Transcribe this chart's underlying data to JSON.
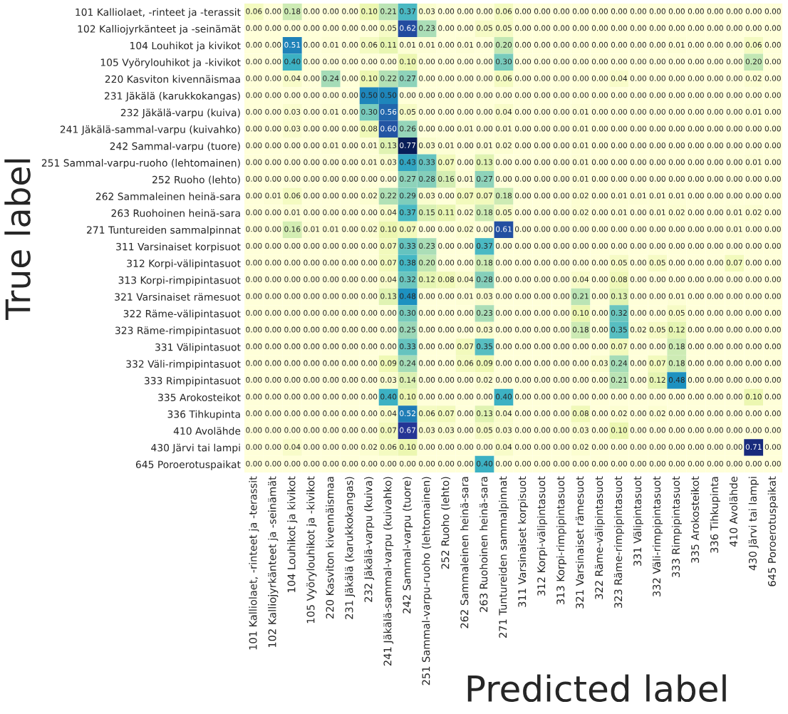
{
  "chart_data": {
    "type": "heatmap",
    "xlabel": "Predicted label",
    "ylabel": "True label",
    "cell_labels": [
      [
        "0.06",
        "0.00",
        "0.18",
        "0.00",
        "0.00",
        "0.00",
        "0.10",
        "0.21",
        "0.37",
        "0.03",
        "0.00",
        "0.00",
        "0.00",
        "0.06",
        "0.00",
        "0.00",
        "0.00",
        "0.00",
        "0.00",
        "0.00",
        "0.00",
        "0.00",
        "0.00",
        "0.00",
        "0.00",
        "0.00",
        "0.00",
        "0.00"
      ],
      [
        "0.00",
        "0.00",
        "0.00",
        "0.00",
        "0.00",
        "0.00",
        "0.00",
        "0.05",
        "0.62",
        "0.23",
        "0.00",
        "0.00",
        "0.05",
        "0.05",
        "0.00",
        "0.00",
        "0.00",
        "0.00",
        "0.00",
        "0.00",
        "0.00",
        "0.00",
        "0.00",
        "0.00",
        "0.00",
        "0.00",
        "0.00",
        "0.00"
      ],
      [
        "0.00",
        "0.00",
        "0.51",
        "0.00",
        "0.01",
        "0.00",
        "0.06",
        "0.11",
        "0.01",
        "0.01",
        "0.00",
        "0.01",
        "0.00",
        "0.20",
        "0.00",
        "0.00",
        "0.00",
        "0.00",
        "0.00",
        "0.00",
        "0.00",
        "0.00",
        "0.01",
        "0.00",
        "0.00",
        "0.00",
        "0.06",
        "0.00"
      ],
      [
        "0.00",
        "0.00",
        "0.40",
        "0.00",
        "0.00",
        "0.00",
        "0.00",
        "0.00",
        "0.10",
        "0.00",
        "0.00",
        "0.00",
        "0.00",
        "0.30",
        "0.00",
        "0.00",
        "0.00",
        "0.00",
        "0.00",
        "0.00",
        "0.00",
        "0.00",
        "0.00",
        "0.00",
        "0.00",
        "0.00",
        "0.20",
        "0.00"
      ],
      [
        "0.00",
        "0.00",
        "0.04",
        "0.00",
        "0.24",
        "0.00",
        "0.10",
        "0.22",
        "0.27",
        "0.00",
        "0.00",
        "0.00",
        "0.00",
        "0.06",
        "0.00",
        "0.00",
        "0.00",
        "0.00",
        "0.00",
        "0.04",
        "0.00",
        "0.00",
        "0.00",
        "0.00",
        "0.00",
        "0.00",
        "0.02",
        "0.00"
      ],
      [
        "0.00",
        "0.00",
        "0.00",
        "0.00",
        "0.00",
        "0.00",
        "0.50",
        "0.50",
        "0.00",
        "0.00",
        "0.00",
        "0.00",
        "0.00",
        "0.00",
        "0.00",
        "0.00",
        "0.00",
        "0.00",
        "0.00",
        "0.00",
        "0.00",
        "0.00",
        "0.00",
        "0.00",
        "0.00",
        "0.00",
        "0.00",
        "0.00"
      ],
      [
        "0.00",
        "0.00",
        "0.03",
        "0.00",
        "0.01",
        "0.00",
        "0.30",
        "0.56",
        "0.05",
        "0.00",
        "0.00",
        "0.00",
        "0.00",
        "0.04",
        "0.00",
        "0.00",
        "0.00",
        "0.01",
        "0.00",
        "0.00",
        "0.00",
        "0.00",
        "0.00",
        "0.00",
        "0.00",
        "0.00",
        "0.01",
        "0.00"
      ],
      [
        "0.00",
        "0.00",
        "0.03",
        "0.00",
        "0.00",
        "0.00",
        "0.08",
        "0.60",
        "0.26",
        "0.00",
        "0.00",
        "0.01",
        "0.00",
        "0.01",
        "0.00",
        "0.00",
        "0.00",
        "0.01",
        "0.00",
        "0.00",
        "0.00",
        "0.00",
        "0.00",
        "0.00",
        "0.00",
        "0.00",
        "0.00",
        "0.00"
      ],
      [
        "0.00",
        "0.00",
        "0.00",
        "0.00",
        "0.01",
        "0.00",
        "0.01",
        "0.13",
        "0.77",
        "0.03",
        "0.01",
        "0.00",
        "0.01",
        "0.02",
        "0.00",
        "0.00",
        "0.00",
        "0.01",
        "0.00",
        "0.00",
        "0.00",
        "0.00",
        "0.00",
        "0.00",
        "0.00",
        "0.00",
        "0.00",
        "0.00"
      ],
      [
        "0.00",
        "0.00",
        "0.00",
        "0.00",
        "0.00",
        "0.00",
        "0.01",
        "0.03",
        "0.43",
        "0.33",
        "0.07",
        "0.00",
        "0.13",
        "0.00",
        "0.00",
        "0.00",
        "0.00",
        "0.01",
        "0.00",
        "0.00",
        "0.00",
        "0.00",
        "0.00",
        "0.00",
        "0.00",
        "0.00",
        "0.01",
        "0.00"
      ],
      [
        "0.00",
        "0.00",
        "0.00",
        "0.00",
        "0.00",
        "0.00",
        "0.00",
        "0.00",
        "0.27",
        "0.28",
        "0.16",
        "0.01",
        "0.27",
        "0.00",
        "0.00",
        "0.00",
        "0.00",
        "0.01",
        "0.00",
        "0.00",
        "0.00",
        "0.00",
        "0.00",
        "0.00",
        "0.00",
        "0.00",
        "0.00",
        "0.00"
      ],
      [
        "0.00",
        "0.01",
        "0.06",
        "0.00",
        "0.00",
        "0.00",
        "0.02",
        "0.22",
        "0.29",
        "0.03",
        "0.00",
        "0.07",
        "0.07",
        "0.18",
        "0.00",
        "0.00",
        "0.00",
        "0.02",
        "0.00",
        "0.01",
        "0.01",
        "0.01",
        "0.01",
        "0.00",
        "0.00",
        "0.00",
        "0.00",
        "0.00"
      ],
      [
        "0.00",
        "0.00",
        "0.01",
        "0.00",
        "0.00",
        "0.00",
        "0.00",
        "0.04",
        "0.37",
        "0.15",
        "0.11",
        "0.02",
        "0.18",
        "0.05",
        "0.00",
        "0.00",
        "0.00",
        "0.02",
        "0.00",
        "0.01",
        "0.00",
        "0.01",
        "0.02",
        "0.00",
        "0.00",
        "0.01",
        "0.02",
        "0.00"
      ],
      [
        "0.00",
        "0.00",
        "0.16",
        "0.01",
        "0.01",
        "0.00",
        "0.02",
        "0.10",
        "0.07",
        "0.00",
        "0.00",
        "0.02",
        "0.00",
        "0.61",
        "0.00",
        "0.00",
        "0.00",
        "0.00",
        "0.00",
        "0.00",
        "0.00",
        "0.00",
        "0.00",
        "0.00",
        "0.00",
        "0.01",
        "0.00",
        "0.00"
      ],
      [
        "0.00",
        "0.00",
        "0.00",
        "0.00",
        "0.00",
        "0.00",
        "0.00",
        "0.07",
        "0.33",
        "0.23",
        "0.00",
        "0.00",
        "0.37",
        "0.00",
        "0.00",
        "0.00",
        "0.00",
        "0.00",
        "0.00",
        "0.00",
        "0.00",
        "0.00",
        "0.00",
        "0.00",
        "0.00",
        "0.00",
        "0.00",
        "0.00"
      ],
      [
        "0.00",
        "0.00",
        "0.00",
        "0.00",
        "0.00",
        "0.00",
        "0.00",
        "0.07",
        "0.38",
        "0.20",
        "0.00",
        "0.00",
        "0.18",
        "0.00",
        "0.00",
        "0.00",
        "0.00",
        "0.00",
        "0.00",
        "0.05",
        "0.00",
        "0.05",
        "0.00",
        "0.00",
        "0.00",
        "0.07",
        "0.00",
        "0.00"
      ],
      [
        "0.00",
        "0.00",
        "0.00",
        "0.00",
        "0.00",
        "0.00",
        "0.00",
        "0.04",
        "0.32",
        "0.12",
        "0.08",
        "0.04",
        "0.28",
        "0.00",
        "0.00",
        "0.00",
        "0.00",
        "0.04",
        "0.00",
        "0.08",
        "0.00",
        "0.00",
        "0.00",
        "0.00",
        "0.00",
        "0.00",
        "0.00",
        "0.00"
      ],
      [
        "0.00",
        "0.00",
        "0.00",
        "0.00",
        "0.00",
        "0.00",
        "0.00",
        "0.13",
        "0.48",
        "0.00",
        "0.00",
        "0.01",
        "0.03",
        "0.00",
        "0.00",
        "0.00",
        "0.00",
        "0.21",
        "0.00",
        "0.13",
        "0.00",
        "0.00",
        "0.01",
        "0.00",
        "0.00",
        "0.00",
        "0.00",
        "0.00"
      ],
      [
        "0.00",
        "0.00",
        "0.00",
        "0.00",
        "0.00",
        "0.00",
        "0.00",
        "0.00",
        "0.30",
        "0.00",
        "0.00",
        "0.00",
        "0.23",
        "0.00",
        "0.00",
        "0.00",
        "0.00",
        "0.10",
        "0.00",
        "0.32",
        "0.00",
        "0.00",
        "0.05",
        "0.00",
        "0.00",
        "0.00",
        "0.00",
        "0.00"
      ],
      [
        "0.00",
        "0.00",
        "0.00",
        "0.00",
        "0.00",
        "0.00",
        "0.00",
        "0.00",
        "0.25",
        "0.00",
        "0.00",
        "0.00",
        "0.03",
        "0.00",
        "0.00",
        "0.00",
        "0.00",
        "0.18",
        "0.00",
        "0.35",
        "0.02",
        "0.05",
        "0.12",
        "0.00",
        "0.00",
        "0.00",
        "0.00",
        "0.00"
      ],
      [
        "0.00",
        "0.00",
        "0.00",
        "0.00",
        "0.00",
        "0.00",
        "0.00",
        "0.00",
        "0.33",
        "0.00",
        "0.00",
        "0.07",
        "0.35",
        "0.00",
        "0.00",
        "0.00",
        "0.00",
        "0.00",
        "0.00",
        "0.07",
        "0.00",
        "0.00",
        "0.18",
        "0.00",
        "0.00",
        "0.00",
        "0.00",
        "0.00"
      ],
      [
        "0.00",
        "0.00",
        "0.00",
        "0.00",
        "0.00",
        "0.00",
        "0.00",
        "0.09",
        "0.24",
        "0.00",
        "0.00",
        "0.06",
        "0.09",
        "0.00",
        "0.00",
        "0.00",
        "0.00",
        "0.00",
        "0.03",
        "0.24",
        "0.00",
        "0.07",
        "0.18",
        "0.00",
        "0.00",
        "0.00",
        "0.00",
        "0.00"
      ],
      [
        "0.00",
        "0.00",
        "0.00",
        "0.00",
        "0.00",
        "0.00",
        "0.00",
        "0.03",
        "0.14",
        "0.00",
        "0.00",
        "0.00",
        "0.02",
        "0.00",
        "0.00",
        "0.00",
        "0.00",
        "0.00",
        "0.00",
        "0.21",
        "0.00",
        "0.12",
        "0.48",
        "0.00",
        "0.00",
        "0.00",
        "0.00",
        "0.00"
      ],
      [
        "0.00",
        "0.00",
        "0.00",
        "0.00",
        "0.00",
        "0.00",
        "0.00",
        "0.40",
        "0.10",
        "0.00",
        "0.00",
        "0.00",
        "0.00",
        "0.40",
        "0.00",
        "0.00",
        "0.00",
        "0.00",
        "0.00",
        "0.00",
        "0.00",
        "0.00",
        "0.00",
        "0.00",
        "0.00",
        "0.00",
        "0.10",
        "0.00"
      ],
      [
        "0.00",
        "0.00",
        "0.00",
        "0.00",
        "0.00",
        "0.00",
        "0.00",
        "0.04",
        "0.52",
        "0.06",
        "0.07",
        "0.00",
        "0.13",
        "0.04",
        "0.00",
        "0.00",
        "0.00",
        "0.08",
        "0.00",
        "0.02",
        "0.00",
        "0.02",
        "0.00",
        "0.00",
        "0.00",
        "0.00",
        "0.00",
        "0.00"
      ],
      [
        "0.00",
        "0.00",
        "0.00",
        "0.00",
        "0.00",
        "0.00",
        "0.00",
        "0.07",
        "0.67",
        "0.03",
        "0.03",
        "0.00",
        "0.05",
        "0.03",
        "0.00",
        "0.00",
        "0.00",
        "0.03",
        "0.00",
        "0.10",
        "0.00",
        "0.00",
        "0.00",
        "0.00",
        "0.00",
        "0.00",
        "0.00",
        "0.00"
      ],
      [
        "0.00",
        "0.00",
        "0.04",
        "0.00",
        "0.00",
        "0.00",
        "0.02",
        "0.06",
        "0.10",
        "0.00",
        "0.00",
        "0.00",
        "0.00",
        "0.04",
        "0.00",
        "0.00",
        "0.00",
        "0.02",
        "0.00",
        "0.00",
        "0.00",
        "0.00",
        "0.00",
        "0.00",
        "0.00",
        "0.00",
        "0.71",
        "0.00"
      ],
      [
        "0.00",
        "0.00",
        "0.00",
        "0.00",
        "0.00",
        "0.00",
        "0.00",
        "0.00",
        "0.00",
        "0.00",
        "0.00",
        "0.00",
        "0.40",
        "0.00",
        "0.00",
        "0.00",
        "0.00",
        "0.00",
        "0.00",
        "0.00",
        "0.00",
        "0.00",
        "0.00",
        "0.00",
        "0.00",
        "0.00",
        "0.00",
        "0.00"
      ]
    ],
    "categories": [
      "101 Kalliolaet, -rinteet ja -terassit",
      "102 Kalliojyrkänteet ja -seinämät",
      "104 Louhikot ja kivikot",
      "105 Vyörylouhikot ja -kivikot",
      "220 Kasviton kivennäismaa",
      "231 Jäkälä (karukkokangas)",
      "232 Jäkälä-varpu (kuiva)",
      "241 Jäkälä-sammal-varpu (kuivahko)",
      "242 Sammal-varpu (tuore)",
      "251 Sammal-varpu-ruoho (lehtomainen)",
      "252 Ruoho (lehto)",
      "262 Sammaleinen heinä-sara",
      "263 Ruohoinen heinä-sara",
      "271 Tuntureiden sammalpinnat",
      "311 Varsinaiset korpisuot",
      "312 Korpi-välipintasuot",
      "313 Korpi-rimpipintasuot",
      "321 Varsinaiset rämesuot",
      "322 Räme-välipintasuot",
      "323 Räme-rimpipintasuot",
      "331 Välipintasuot",
      "332 Väli-rimpipintasuot",
      "333 Rimpipintasuot",
      "335 Arokosteikot",
      "336 Tihkupinta",
      "410 Avolähde",
      "430 Järvi tai lampi",
      "645 Poroerotuspaikat"
    ],
    "y_categories": [
      "101 Kalliolaet, -rinteet ja -terassit",
      "102 Kalliojyrkänteet ja -seinämät",
      "104 Louhikot ja kivikot",
      "105 Vyörylouhikot ja -kivikot",
      "220 Kasviton kivennäismaa",
      "231 Jäkälä (karukkokangas)",
      "232 Jäkälä-varpu (kuiva)",
      "241 Jäkälä-sammal-varpu (kuivahko)",
      "242 Sammal-varpu (tuore)",
      "251 Sammal-varpu-ruoho (lehtomainen)",
      "252 Ruoho (lehto)",
      "262 Sammaleinen heinä-sara",
      "263 Ruohoinen heinä-sara",
      "271 Tuntureiden sammalpinnat",
      "311 Varsinaiset korpisuot",
      "312 Korpi-välipintasuot",
      "313 Korpi-rimpipintasuot",
      "321 Varsinaiset rämesuot",
      "322 Räme-välipintasuot",
      "323 Räme-rimpipintasuot",
      "331 Välipintasuot",
      "332 Väli-rimpipintasuot",
      "333 Rimpipintasuot",
      "335 Arokosteikot",
      "336 Tihkupinta",
      "410 Avolähde",
      "430 Järvi tai lampi",
      "645 Poroerotuspaikat"
    ],
    "cells": [
      [
        0.06,
        0,
        0.18,
        0,
        0,
        0,
        0.1,
        0.21,
        0.37,
        0.03,
        0,
        0,
        0,
        0.06,
        0,
        0,
        0,
        0,
        0,
        0,
        0,
        0,
        0,
        0,
        0,
        0,
        0,
        0
      ],
      [
        0,
        0,
        0,
        0,
        0,
        0,
        0,
        0.05,
        0.62,
        0.23,
        0,
        0,
        0.05,
        0.05,
        0,
        0,
        0,
        0,
        0,
        0,
        0,
        0,
        0,
        0,
        0,
        0,
        0,
        0
      ],
      [
        0,
        0,
        0.51,
        0,
        0.01,
        0,
        0.06,
        0.11,
        0.01,
        0.01,
        0,
        0.01,
        0,
        0.2,
        0,
        0,
        0,
        0,
        0,
        0,
        0,
        0,
        0.01,
        0,
        0,
        0,
        0.06,
        0
      ],
      [
        0,
        0,
        0.4,
        0,
        0,
        0,
        0,
        0,
        0.1,
        0,
        0,
        0,
        0,
        0.3,
        0,
        0,
        0,
        0,
        0,
        0,
        0,
        0,
        0,
        0,
        0,
        0,
        0.2,
        0
      ],
      [
        0,
        0,
        0.04,
        0,
        0.24,
        0,
        0.1,
        0.22,
        0.27,
        0,
        0,
        0,
        0,
        0.06,
        0,
        0,
        0,
        0,
        0,
        0.04,
        0,
        0,
        0,
        0,
        0,
        0,
        0.02,
        0
      ],
      [
        0,
        0,
        0,
        0,
        0,
        0,
        0.5,
        0.5,
        0,
        0,
        0,
        0,
        0,
        0,
        0,
        0,
        0,
        0,
        0,
        0,
        0,
        0,
        0,
        0,
        0,
        0,
        0,
        0
      ],
      [
        0,
        0,
        0.03,
        0,
        0.01,
        0,
        0.3,
        0.56,
        0.05,
        0,
        0,
        0,
        0,
        0.04,
        0,
        0,
        0,
        0.01,
        0,
        0,
        0,
        0,
        0,
        0,
        0,
        0,
        0.01,
        0
      ],
      [
        0,
        0,
        0.03,
        0,
        0,
        0,
        0.08,
        0.6,
        0.26,
        0,
        0,
        0.01,
        0,
        0.01,
        0,
        0,
        0,
        0.01,
        0,
        0,
        0,
        0,
        0,
        0,
        0,
        0,
        0,
        0
      ],
      [
        0,
        0,
        0,
        0,
        0.01,
        0,
        0.01,
        0.13,
        0.77,
        0.03,
        0.01,
        0,
        0.01,
        0.02,
        0,
        0,
        0,
        0.01,
        0,
        0,
        0,
        0,
        0,
        0,
        0,
        0,
        0,
        0
      ],
      [
        0,
        0,
        0,
        0,
        0,
        0,
        0.01,
        0.03,
        0.43,
        0.33,
        0.07,
        0,
        0.13,
        0,
        0,
        0,
        0,
        0.01,
        0,
        0,
        0,
        0,
        0,
        0,
        0,
        0,
        0.01,
        0
      ],
      [
        0,
        0,
        0,
        0,
        0,
        0,
        0,
        0,
        0.27,
        0.28,
        0.16,
        0.01,
        0.27,
        0,
        0,
        0,
        0,
        0.01,
        0,
        0,
        0,
        0,
        0,
        0,
        0,
        0,
        0,
        0
      ],
      [
        0,
        0.01,
        0.06,
        0,
        0,
        0,
        0.02,
        0.22,
        0.29,
        0.03,
        0,
        0.07,
        0.07,
        0.18,
        0,
        0,
        0,
        0.02,
        0,
        0.01,
        0.01,
        0.01,
        0.01,
        0,
        0,
        0,
        0,
        0
      ],
      [
        0,
        0,
        0.01,
        0,
        0,
        0,
        0,
        0.04,
        0.37,
        0.15,
        0.11,
        0.02,
        0.18,
        0.05,
        0,
        0,
        0,
        0.02,
        0,
        0.01,
        0,
        0.01,
        0.02,
        0,
        0,
        0.01,
        0.02,
        0
      ],
      [
        0,
        0,
        0.16,
        0.01,
        0.01,
        0,
        0.02,
        0.1,
        0.07,
        0,
        0,
        0.02,
        0,
        0.61,
        0,
        0,
        0,
        0,
        0,
        0,
        0,
        0,
        0,
        0,
        0,
        0.01,
        0,
        0
      ],
      [
        0,
        0,
        0,
        0,
        0,
        0,
        0,
        0.07,
        0.33,
        0.23,
        0,
        0,
        0.37,
        0,
        0,
        0,
        0,
        0,
        0,
        0,
        0,
        0,
        0,
        0,
        0,
        0,
        0,
        0
      ],
      [
        0,
        0,
        0,
        0,
        0,
        0,
        0,
        0.07,
        0.38,
        0.2,
        0,
        0,
        0.18,
        0,
        0,
        0,
        0,
        0,
        0,
        0.05,
        0,
        0.05,
        0,
        0,
        0,
        0.07,
        0,
        0
      ],
      [
        0,
        0,
        0,
        0,
        0,
        0,
        0,
        0.04,
        0.32,
        0.12,
        0.08,
        0.04,
        0.28,
        0,
        0,
        0,
        0,
        0.04,
        0,
        0.08,
        0,
        0,
        0,
        0,
        0,
        0,
        0,
        0
      ],
      [
        0,
        0,
        0,
        0,
        0,
        0,
        0,
        0.13,
        0.48,
        0,
        0,
        0.01,
        0.03,
        0,
        0,
        0,
        0,
        0.21,
        0,
        0.13,
        0,
        0,
        0.01,
        0,
        0,
        0,
        0,
        0
      ],
      [
        0,
        0,
        0,
        0,
        0,
        0,
        0,
        0,
        0.3,
        0,
        0,
        0,
        0.23,
        0,
        0,
        0,
        0,
        0.1,
        0,
        0.32,
        0,
        0,
        0.05,
        0,
        0,
        0,
        0,
        0
      ],
      [
        0,
        0,
        0,
        0,
        0,
        0,
        0,
        0,
        0.25,
        0,
        0,
        0,
        0.03,
        0,
        0,
        0,
        0,
        0.18,
        0,
        0.35,
        0.02,
        0.05,
        0.12,
        0,
        0,
        0,
        0,
        0
      ],
      [
        0,
        0,
        0,
        0,
        0,
        0,
        0,
        0,
        0.33,
        0,
        0,
        0.07,
        0.35,
        0,
        0,
        0,
        0,
        0,
        0,
        0.07,
        0,
        0,
        0.18,
        0,
        0,
        0,
        0,
        0
      ],
      [
        0,
        0,
        0,
        0,
        0,
        0,
        0,
        0.09,
        0.24,
        0,
        0,
        0.06,
        0.09,
        0,
        0,
        0,
        0,
        0,
        0.03,
        0.24,
        0,
        0.07,
        0.18,
        0,
        0,
        0,
        0,
        0
      ],
      [
        0,
        0,
        0,
        0,
        0,
        0,
        0,
        0.03,
        0.14,
        0,
        0,
        0,
        0.02,
        0,
        0,
        0,
        0,
        0,
        0,
        0.21,
        0,
        0.12,
        0.48,
        0,
        0,
        0,
        0,
        0
      ],
      [
        0,
        0,
        0,
        0,
        0,
        0,
        0,
        0.4,
        0.1,
        0,
        0,
        0,
        0,
        0.4,
        0,
        0,
        0,
        0,
        0,
        0,
        0,
        0,
        0,
        0,
        0,
        0,
        0.1,
        0
      ],
      [
        0,
        0,
        0,
        0,
        0,
        0,
        0,
        0.04,
        0.52,
        0.06,
        0.07,
        0,
        0.13,
        0.04,
        0,
        0,
        0,
        0.08,
        0,
        0.02,
        0,
        0.02,
        0,
        0,
        0,
        0,
        0,
        0
      ],
      [
        0,
        0,
        0,
        0,
        0,
        0,
        0,
        0.07,
        0.67,
        0.03,
        0.03,
        0,
        0.05,
        0.03,
        0,
        0,
        0,
        0.03,
        0,
        0.1,
        0,
        0,
        0,
        0,
        0,
        0,
        0,
        0
      ],
      [
        0,
        0,
        0.04,
        0,
        0,
        0,
        0.02,
        0.06,
        0.1,
        0,
        0,
        0,
        0,
        0.04,
        0,
        0,
        0,
        0.02,
        0,
        0,
        0,
        0,
        0,
        0,
        0,
        0,
        0.71,
        0
      ],
      [
        0,
        0,
        0,
        0,
        0,
        0,
        0,
        0,
        0,
        0,
        0,
        0,
        0.4,
        0,
        0,
        0,
        0,
        0,
        0,
        0,
        0,
        0,
        0,
        0,
        0,
        0,
        0,
        0
      ]
    ]
  }
}
